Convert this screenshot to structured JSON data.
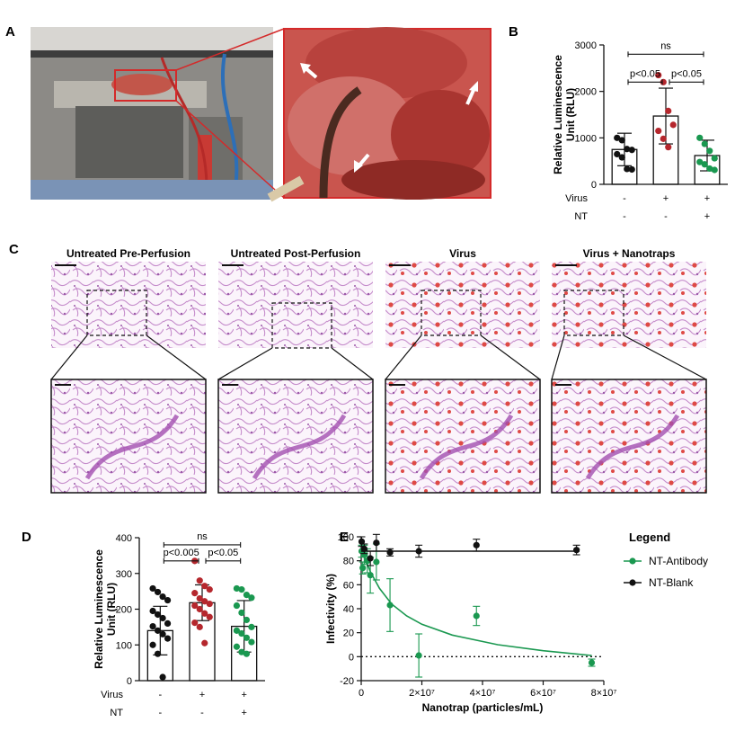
{
  "panels": {
    "a": {
      "letter": "A"
    },
    "b": {
      "letter": "B"
    },
    "c": {
      "letter": "C"
    },
    "d": {
      "letter": "D"
    },
    "e": {
      "letter": "E"
    }
  },
  "histology": {
    "titles": [
      "Untreated Pre-Perfusion",
      "Untreated Post-Perfusion",
      "Virus",
      "Virus + Nanotraps"
    ]
  },
  "colors": {
    "red": "#b5272d",
    "green": "#1a9850",
    "black": "#111111",
    "tissue_pink": "#c98ac4",
    "blood_red": "#d93a3a"
  },
  "chart_data": [
    {
      "id": "B",
      "type": "bar",
      "ylabel": "Relative Luminescence Unit (RLU)",
      "ylim": [
        0,
        3000
      ],
      "yticks": [
        0,
        1000,
        2000,
        3000
      ],
      "row_labels": [
        "Virus",
        "NT"
      ],
      "categories": [
        {
          "virus": "-",
          "nt": "-"
        },
        {
          "virus": "+",
          "nt": "-"
        },
        {
          "virus": "+",
          "nt": "+"
        }
      ],
      "means": [
        750,
        1470,
        620
      ],
      "sd": [
        350,
        600,
        330
      ],
      "points": [
        [
          1000,
          950,
          760,
          740,
          650,
          580,
          330,
          320
        ],
        [
          2350,
          2200,
          1580,
          1280,
          1150,
          980,
          800
        ],
        [
          1000,
          870,
          720,
          560,
          480,
          430,
          340,
          310
        ]
      ],
      "point_colors": [
        "#111111",
        "#b5272d",
        "#1a9850"
      ],
      "annotations": [
        {
          "text": "ns",
          "from": 0,
          "to": 2,
          "y": 2800
        },
        {
          "text": "p<0.05",
          "from": 0,
          "to": 1,
          "y": 2200
        },
        {
          "text": "p<0.05",
          "from": 1,
          "to": 2,
          "y": 2200
        }
      ]
    },
    {
      "id": "D",
      "type": "bar",
      "ylabel": "Relative Luminescence Unit (RLU)",
      "ylim": [
        0,
        400
      ],
      "yticks": [
        0,
        100,
        200,
        300,
        400
      ],
      "row_labels": [
        "Virus",
        "NT"
      ],
      "categories": [
        {
          "virus": "-",
          "nt": "-"
        },
        {
          "virus": "+",
          "nt": "-"
        },
        {
          "virus": "+",
          "nt": "+"
        }
      ],
      "means": [
        140,
        218,
        152
      ],
      "sd": [
        68,
        50,
        72
      ],
      "points": [
        [
          258,
          248,
          235,
          225,
          195,
          185,
          175,
          160,
          152,
          140,
          130,
          118,
          100,
          75,
          10
        ],
        [
          335,
          280,
          265,
          255,
          245,
          230,
          222,
          215,
          210,
          200,
          188,
          178,
          162,
          150,
          105
        ],
        [
          258,
          255,
          240,
          232,
          210,
          190,
          170,
          150,
          140,
          132,
          120,
          108,
          95,
          80,
          75
        ]
      ],
      "point_colors": [
        "#111111",
        "#b5272d",
        "#1a9850"
      ],
      "annotations": [
        {
          "text": "ns",
          "from": 0,
          "to": 2,
          "y": 380
        },
        {
          "text": "p<0.005",
          "from": 0,
          "to": 1,
          "y": 335
        },
        {
          "text": "p<0.05",
          "from": 1,
          "to": 2,
          "y": 335
        }
      ]
    },
    {
      "id": "E",
      "type": "scatter",
      "xlabel": "Nanotrap (particles/mL)",
      "ylabel": "Infectivity (%)",
      "xlim": [
        0,
        80000000
      ],
      "ylim": [
        -20,
        100
      ],
      "xticks": [
        0,
        20000000,
        40000000,
        60000000,
        80000000
      ],
      "xtick_labels": [
        "0",
        "2×10⁷",
        "4×10⁷",
        "6×10⁷",
        "8×10⁷"
      ],
      "yticks": [
        -20,
        0,
        20,
        40,
        60,
        80,
        100
      ],
      "legend_title": "Legend",
      "series": [
        {
          "name": "NT-Antibody",
          "color": "#1a9850",
          "points": [
            {
              "x": 150000,
              "y": 88,
              "err": 5
            },
            {
              "x": 500000,
              "y": 74,
              "err": 5
            },
            {
              "x": 1000000,
              "y": 85,
              "err": 8
            },
            {
              "x": 2000000,
              "y": 80,
              "err": 10
            },
            {
              "x": 3000000,
              "y": 68,
              "err": 15
            },
            {
              "x": 5000000,
              "y": 79,
              "err": 15
            },
            {
              "x": 9500000,
              "y": 43,
              "err": 22
            },
            {
              "x": 19000000,
              "y": 1,
              "err": 18
            },
            {
              "x": 38000000,
              "y": 34,
              "err": 8
            },
            {
              "x": 76000000,
              "y": -5,
              "err": 3
            }
          ],
          "fit": [
            [
              200000,
              93
            ],
            [
              1000000,
              84
            ],
            [
              3000000,
              71
            ],
            [
              6000000,
              57
            ],
            [
              10000000,
              44
            ],
            [
              15000000,
              34
            ],
            [
              20000000,
              27
            ],
            [
              30000000,
              18
            ],
            [
              45000000,
              10
            ],
            [
              60000000,
              5
            ],
            [
              76000000,
              1
            ]
          ]
        },
        {
          "name": "NT-Blank",
          "color": "#111111",
          "points": [
            {
              "x": 150000,
              "y": 96,
              "err": 4
            },
            {
              "x": 1000000,
              "y": 90,
              "err": 4
            },
            {
              "x": 3000000,
              "y": 82,
              "err": 6
            },
            {
              "x": 5000000,
              "y": 95,
              "err": 7
            },
            {
              "x": 9500000,
              "y": 87,
              "err": 3
            },
            {
              "x": 19000000,
              "y": 88,
              "err": 5
            },
            {
              "x": 38000000,
              "y": 93,
              "err": 5
            },
            {
              "x": 71000000,
              "y": 89,
              "err": 4
            }
          ],
          "fit": [
            [
              0,
              88
            ],
            [
              72000000,
              88
            ]
          ]
        }
      ],
      "reference_line": {
        "y": 0,
        "style": "dotted"
      }
    }
  ]
}
